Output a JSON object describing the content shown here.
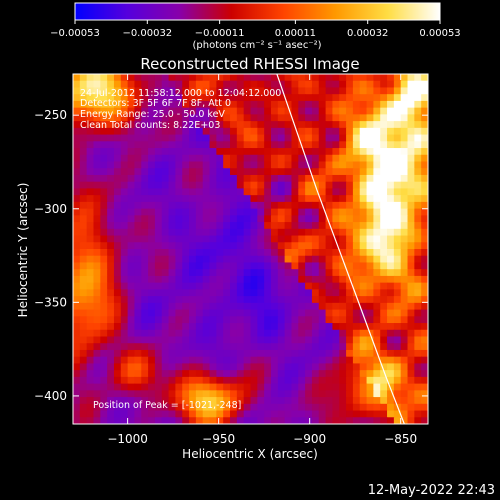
{
  "chart_data": {
    "type": "heatmap",
    "title": "Reconstructed RHESSI Image",
    "xlabel": "Heliocentric X (arcsec)",
    "ylabel": "Heliocentric Y (arcsec)",
    "xlim": [
      -1030,
      -835
    ],
    "ylim": [
      -415,
      -228
    ],
    "x_ticks": [
      -1000,
      -950,
      -900,
      -850
    ],
    "y_ticks": [
      -250,
      -300,
      -350,
      -400
    ],
    "x_tick_labels": [
      "−1000",
      "−950",
      "−900",
      "−850"
    ],
    "y_tick_labels": [
      "−250",
      "−300",
      "−350",
      "−400"
    ],
    "colorbar": {
      "range": [
        -0.00053,
        0.00053
      ],
      "ticks": [
        -0.00053,
        -0.00032,
        -0.00011,
        0.00011,
        0.00032,
        0.00053
      ],
      "tick_labels": [
        "−0.00053",
        "−0.00032",
        "−0.00011",
        "0.00011",
        "0.00032",
        "0.00053"
      ],
      "unit_label": "(photons cm⁻² s⁻¹ asec⁻²)",
      "colormap": [
        "#0000ff",
        "#5500dd",
        "#8800aa",
        "#cc0000",
        "#ff4400",
        "#ff9900",
        "#ffdd44",
        "#ffffff"
      ]
    },
    "annotations": [
      "24-Jul-2012 11:58:12.000 to 12:04:12.000",
      "Detectors: 3F 5F 6F 7F 8F, Att 0",
      "Energy Range: 25.0 - 50.0 keV",
      "Clean    Total counts: 8.22E+03"
    ],
    "peak_label": "Position of Peak = [-1021,-248]",
    "limb_line": {
      "description": "solar limb",
      "x": [
        -918,
        -896,
        -875,
        -858,
        -848
      ],
      "y": [
        -228,
        -290,
        -345,
        -390,
        -415
      ]
    }
  },
  "footer_timestamp": "12-May-2022 22:43"
}
